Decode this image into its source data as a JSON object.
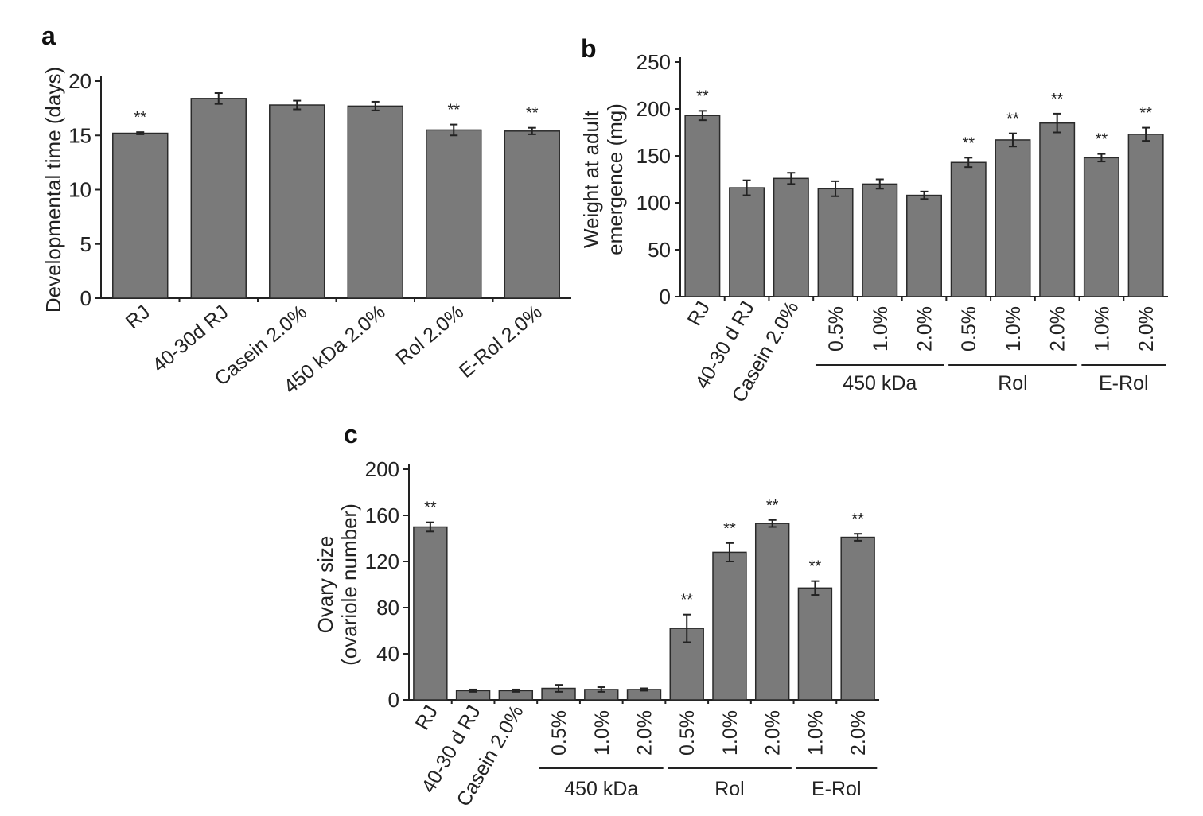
{
  "chart_data": [
    {
      "panel": "a",
      "type": "bar",
      "ylabel": "Developmental time (days)",
      "ylim": [
        0,
        20
      ],
      "yticks": [
        0,
        5,
        10,
        15,
        20
      ],
      "categories": [
        "RJ",
        "40-30d RJ",
        "Casein 2.0%",
        "450 kDa 2.0%",
        "Rol 2.0%",
        "E-Rol 2.0%"
      ],
      "values": [
        15.2,
        18.4,
        17.8,
        17.7,
        15.5,
        15.4
      ],
      "errors": [
        0.1,
        0.5,
        0.4,
        0.4,
        0.5,
        0.3
      ],
      "significance": [
        "**",
        "",
        "",
        "",
        "**",
        "**"
      ],
      "groups": []
    },
    {
      "panel": "b",
      "type": "bar",
      "ylabel_lines": [
        "Weight at adult",
        "emergence (mg)"
      ],
      "ylim": [
        0,
        250
      ],
      "yticks": [
        0,
        50,
        100,
        150,
        200,
        250
      ],
      "categories": [
        "RJ",
        "40-30 d RJ",
        "Casein 2.0%",
        "0.5%",
        "1.0%",
        "2.0%",
        "0.5%",
        "1.0%",
        "2.0%",
        "1.0%",
        "2.0%"
      ],
      "values": [
        193,
        116,
        126,
        115,
        120,
        108,
        143,
        167,
        185,
        148,
        173
      ],
      "errors": [
        5,
        8,
        6,
        8,
        5,
        4,
        5,
        7,
        10,
        4,
        7
      ],
      "significance": [
        "**",
        "",
        "",
        "",
        "",
        "",
        "**",
        "**",
        "**",
        "**",
        "**"
      ],
      "groups": [
        {
          "label": "450 kDa",
          "from": 3,
          "to": 5
        },
        {
          "label": "Rol",
          "from": 6,
          "to": 8
        },
        {
          "label": "E-Rol",
          "from": 9,
          "to": 10
        }
      ]
    },
    {
      "panel": "c",
      "type": "bar",
      "ylabel_lines": [
        "Ovary size",
        "(ovariole number)"
      ],
      "ylim": [
        0,
        200
      ],
      "yticks": [
        0,
        40,
        80,
        120,
        160,
        200
      ],
      "categories": [
        "RJ",
        "40-30 d RJ",
        "Casein 2.0%",
        "0.5%",
        "1.0%",
        "2.0%",
        "0.5%",
        "1.0%",
        "2.0%",
        "1.0%",
        "2.0%"
      ],
      "values": [
        150,
        8,
        8,
        10,
        9,
        9,
        62,
        128,
        153,
        97,
        141
      ],
      "errors": [
        4,
        1,
        1,
        3,
        2,
        1,
        12,
        8,
        3,
        6,
        3
      ],
      "significance": [
        "**",
        "",
        "",
        "",
        "",
        "",
        "**",
        "**",
        "**",
        "**",
        "**"
      ],
      "groups": [
        {
          "label": "450 kDa",
          "from": 3,
          "to": 5
        },
        {
          "label": "Rol",
          "from": 6,
          "to": 8
        },
        {
          "label": "E-Rol",
          "from": 9,
          "to": 10
        }
      ]
    }
  ]
}
